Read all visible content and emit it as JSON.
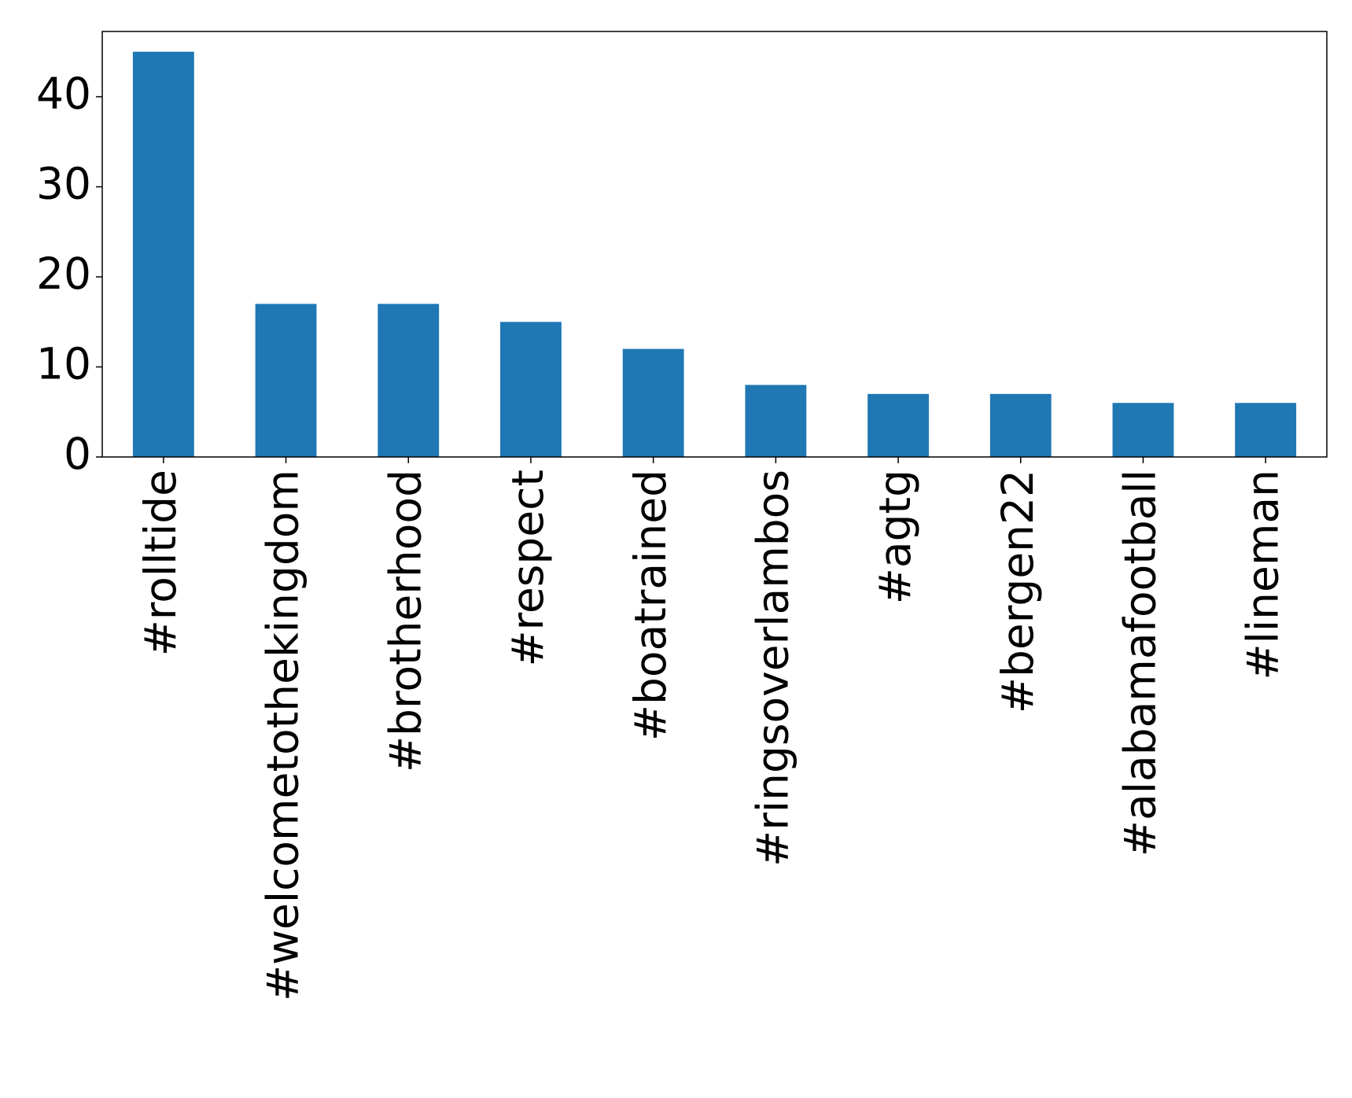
{
  "chart_data": {
    "type": "bar",
    "categories": [
      "#rolltide",
      "#welcometothekingdom",
      "#brotherhood",
      "#respect",
      "#boatrained",
      "#ringsoverlambos",
      "#agtg",
      "#bergen22",
      "#alabamafootball",
      "#lineman"
    ],
    "values": [
      45,
      17,
      17,
      15,
      12,
      8,
      7,
      7,
      6,
      6
    ],
    "color": "#1f77b4",
    "ylim": [
      0,
      47.25
    ],
    "yticks": [
      0,
      10,
      20,
      30,
      40
    ],
    "grid": false
  }
}
